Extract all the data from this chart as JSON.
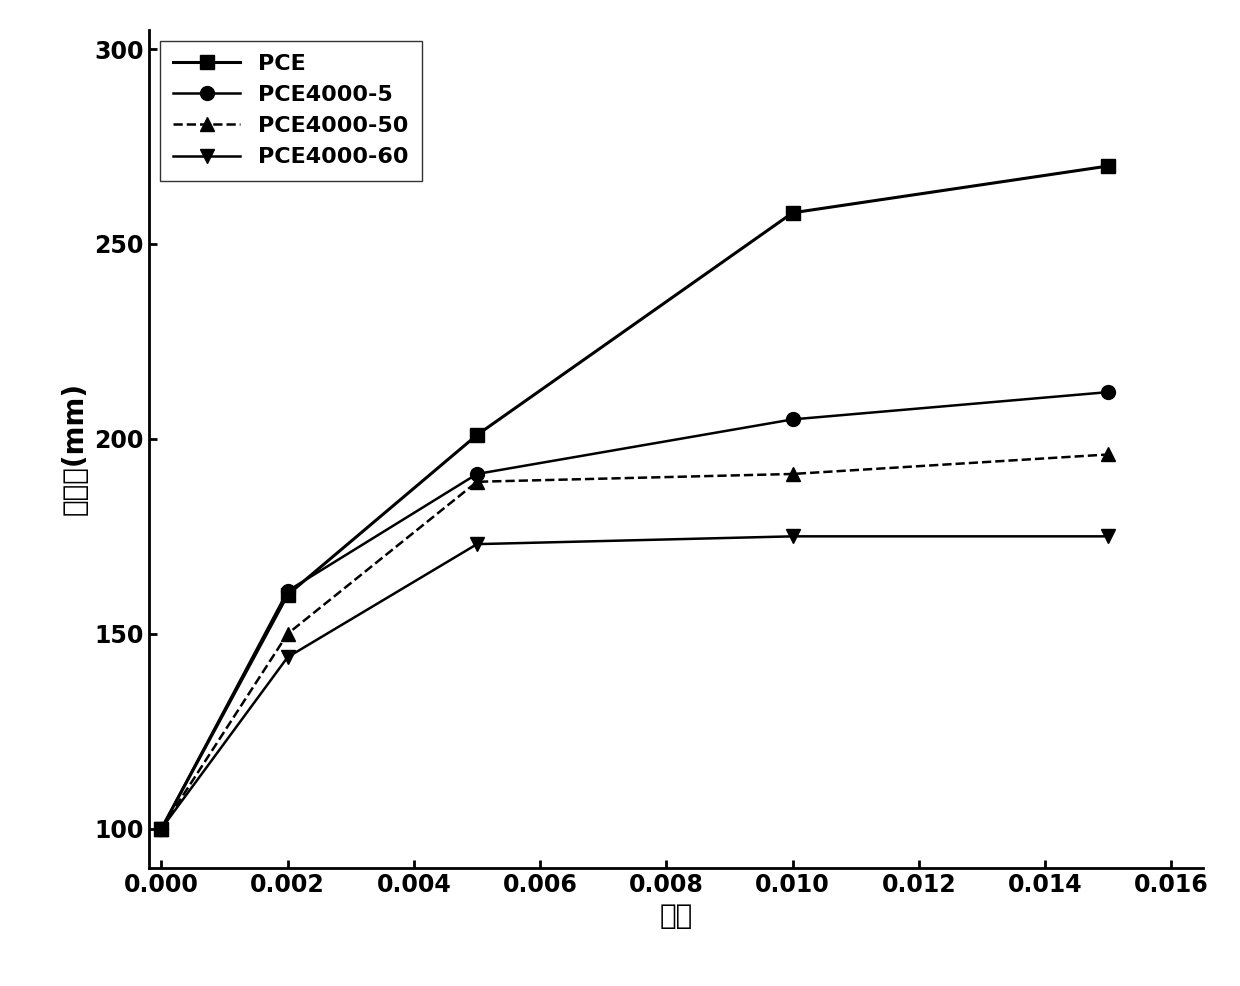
{
  "x": [
    0.0,
    0.002,
    0.005,
    0.01,
    0.015
  ],
  "series": [
    {
      "label": "PCE",
      "y": [
        100,
        160,
        201,
        258,
        270
      ],
      "color": "#000000",
      "linestyle": "-",
      "marker": "s",
      "markersize": 10,
      "linewidth": 2.2
    },
    {
      "label": "PCE4000-5",
      "y": [
        100,
        161,
        191,
        205,
        212
      ],
      "color": "#000000",
      "linestyle": "-",
      "marker": "o",
      "markersize": 10,
      "linewidth": 1.8
    },
    {
      "label": "PCE4000-50",
      "y": [
        100,
        150,
        189,
        191,
        196
      ],
      "color": "#000000",
      "linestyle": "--",
      "marker": "^",
      "markersize": 10,
      "linewidth": 1.8
    },
    {
      "label": "PCE4000-60",
      "y": [
        100,
        144,
        173,
        175,
        175
      ],
      "color": "#000000",
      "linestyle": "-",
      "marker": "v",
      "markersize": 10,
      "linewidth": 1.8
    }
  ],
  "xlabel": "掺量",
  "ylabel": "流动度(mm)",
  "xlim": [
    -0.0002,
    0.0165
  ],
  "ylim": [
    90,
    305
  ],
  "xticks": [
    0.0,
    0.002,
    0.004,
    0.006,
    0.008,
    0.01,
    0.012,
    0.014,
    0.016
  ],
  "yticks": [
    100,
    150,
    200,
    250,
    300
  ],
  "legend_loc": "upper left",
  "legend_fontsize": 16,
  "axis_label_fontsize": 20,
  "tick_fontsize": 17,
  "background_color": "#ffffff"
}
